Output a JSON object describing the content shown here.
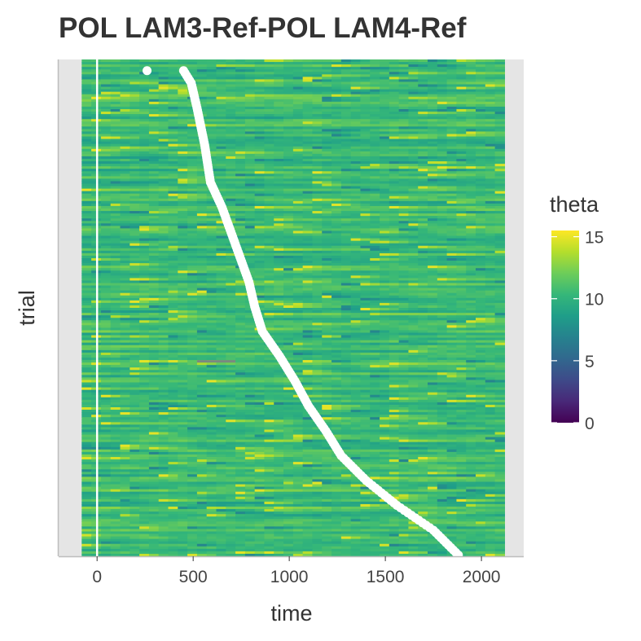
{
  "chart_data": {
    "type": "heatmap",
    "title": "POL LAM3-Ref-POL LAM4-Ref",
    "xlabel": "time",
    "ylabel": "trial",
    "x_range": [
      -80,
      2120
    ],
    "xlim": [
      -200,
      2220
    ],
    "x_ticks": [
      0,
      500,
      1000,
      1500,
      2000
    ],
    "x_tick_labels": [
      "0",
      "500",
      "1000",
      "1500",
      "2000"
    ],
    "n_trials": 200,
    "y_ticks": [],
    "colorbar": {
      "title": "theta",
      "min": 0,
      "max": 15.5,
      "ticks": [
        0,
        5,
        10,
        15
      ],
      "tick_labels": [
        "0",
        "5",
        "10",
        "15"
      ],
      "palette": "viridis",
      "colors": [
        "#440154",
        "#482878",
        "#3E4A89",
        "#31688E",
        "#26828E",
        "#1F9E89",
        "#35B779",
        "#6DCD59",
        "#B4DE2C",
        "#FDE725"
      ]
    },
    "typical_theta": [
      8,
      13
    ],
    "event_line": {
      "x": 0,
      "color": "#ffffff"
    },
    "response_times": {
      "color": "#ffffff",
      "description_free": true,
      "outlier": {
        "trial_from_top": 5,
        "x": 260
      },
      "curve": [
        {
          "trial_from_top": 5,
          "x": 450
        },
        {
          "trial_from_top": 10,
          "x": 490
        },
        {
          "trial_from_top": 20,
          "x": 520
        },
        {
          "trial_from_top": 35,
          "x": 560
        },
        {
          "trial_from_top": 50,
          "x": 590
        },
        {
          "trial_from_top": 60,
          "x": 650
        },
        {
          "trial_from_top": 75,
          "x": 720
        },
        {
          "trial_from_top": 90,
          "x": 790
        },
        {
          "trial_from_top": 100,
          "x": 820
        },
        {
          "trial_from_top": 110,
          "x": 860
        },
        {
          "trial_from_top": 120,
          "x": 950
        },
        {
          "trial_from_top": 130,
          "x": 1030
        },
        {
          "trial_from_top": 140,
          "x": 1100
        },
        {
          "trial_from_top": 150,
          "x": 1190
        },
        {
          "trial_from_top": 160,
          "x": 1270
        },
        {
          "trial_from_top": 170,
          "x": 1400
        },
        {
          "trial_from_top": 180,
          "x": 1560
        },
        {
          "trial_from_top": 190,
          "x": 1750
        },
        {
          "trial_from_top": 200,
          "x": 1880
        }
      ]
    },
    "grey_segment": {
      "trial_from_top": 122,
      "x_from": 520,
      "x_to": 720,
      "color": "#7a8a80"
    },
    "grid": false,
    "legend_placement": "right"
  }
}
